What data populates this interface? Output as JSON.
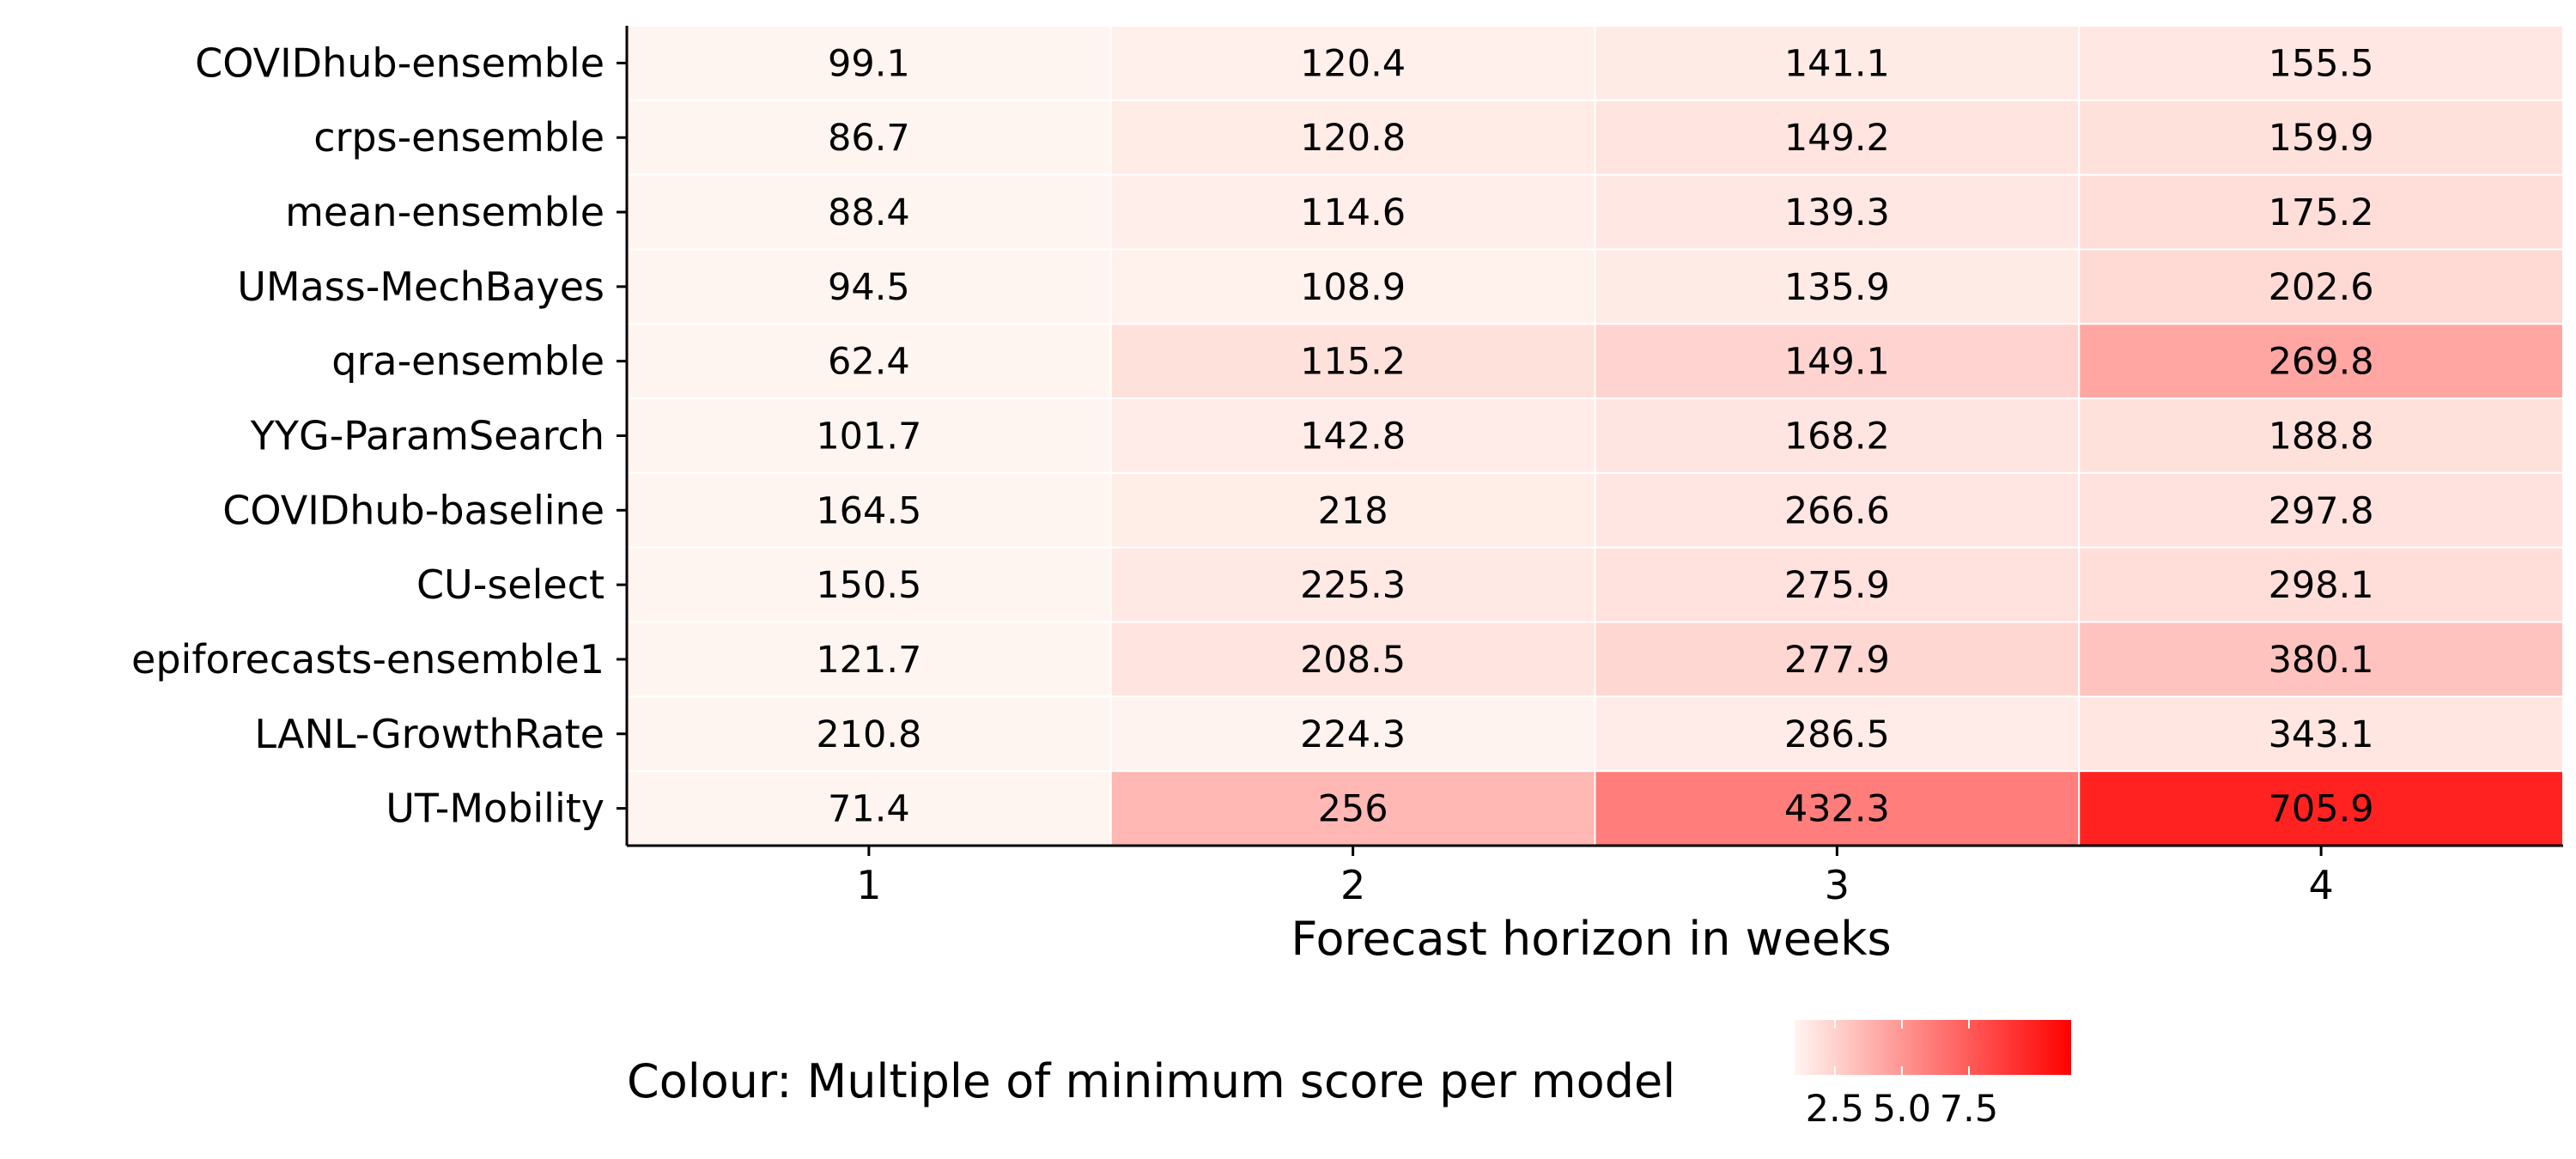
{
  "chart_data": {
    "type": "heatmap",
    "rows": [
      "COVIDhub-ensemble",
      "crps-ensemble",
      "mean-ensemble",
      "UMass-MechBayes",
      "qra-ensemble",
      "YYG-ParamSearch",
      "COVIDhub-baseline",
      "CU-select",
      "epiforecasts-ensemble1",
      "LANL-GrowthRate",
      "UT-Mobility"
    ],
    "columns": [
      "1",
      "2",
      "3",
      "4"
    ],
    "value_labels": [
      [
        "99.1",
        "120.4",
        "141.1",
        "155.5"
      ],
      [
        "86.7",
        "120.8",
        "149.2",
        "159.9"
      ],
      [
        "88.4",
        "114.6",
        "139.3",
        "175.2"
      ],
      [
        "94.5",
        "108.9",
        "135.9",
        "202.6"
      ],
      [
        "62.4",
        "115.2",
        "149.1",
        "269.8"
      ],
      [
        "101.7",
        "142.8",
        "168.2",
        "188.8"
      ],
      [
        "164.5",
        "218",
        "266.6",
        "297.8"
      ],
      [
        "150.5",
        "225.3",
        "275.9",
        "298.1"
      ],
      [
        "121.7",
        "208.5",
        "277.9",
        "380.1"
      ],
      [
        "210.8",
        "224.3",
        "286.5",
        "343.1"
      ],
      [
        "71.4",
        "256",
        "432.3",
        "705.9"
      ]
    ],
    "xlabel": "Forecast horizon in weeks",
    "ylabel": "",
    "colour": {
      "title": "Colour: Multiple of minimum score per model",
      "low": "#fff5f0",
      "high": "#ff0000",
      "ticks": [
        "2.5",
        "5.0",
        "7.5"
      ],
      "tick_values": [
        2.5,
        5.0,
        7.5
      ],
      "range": [
        1.0,
        11.31
      ]
    },
    "grid": false,
    "legend_position": "bottom"
  }
}
